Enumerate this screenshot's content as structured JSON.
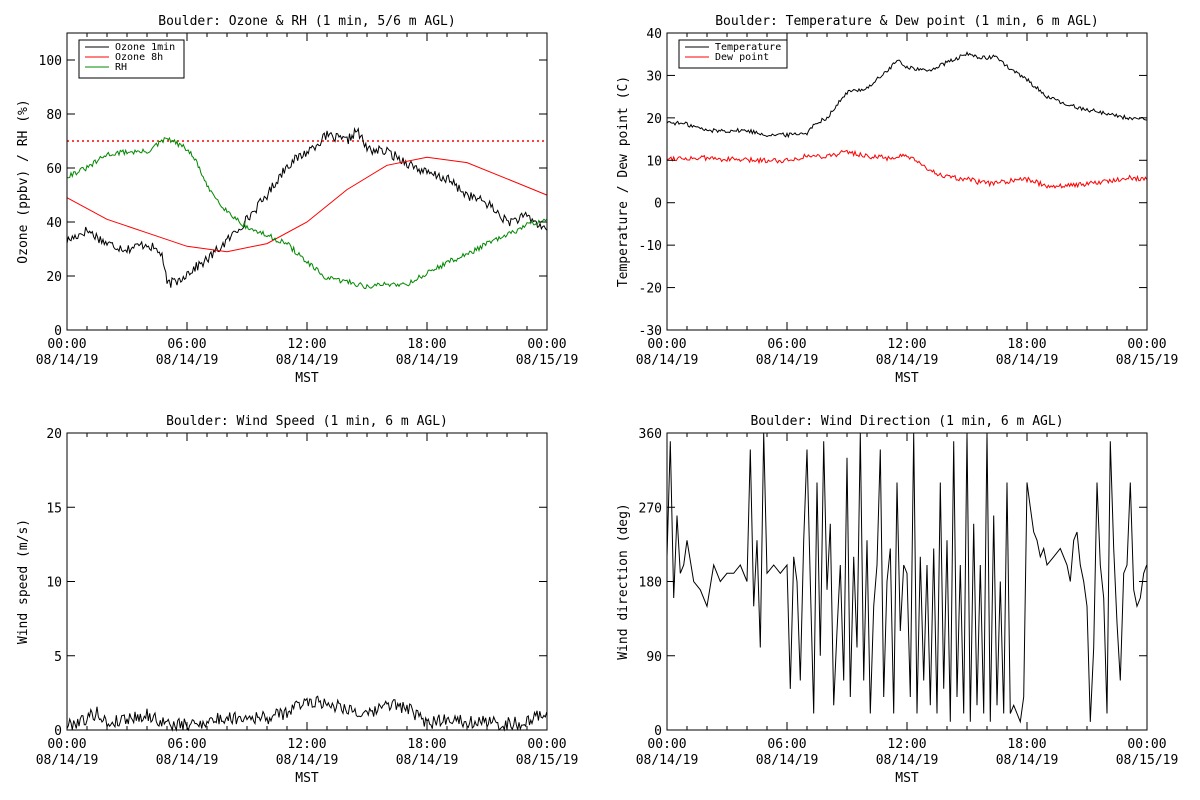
{
  "chart_data": [
    {
      "type": "line",
      "title": "Boulder: Ozone & RH (1 min, 5/6 m AGL)",
      "xlabel": "MST",
      "ylabel": "Ozone (ppbv) / RH (%)",
      "xlim": [
        "08/14/19 00:00",
        "08/15/19 00:00"
      ],
      "ylim": [
        0,
        110
      ],
      "x_ticks": [
        {
          "time": "00:00",
          "date": "08/14/19"
        },
        {
          "time": "06:00",
          "date": "08/14/19"
        },
        {
          "time": "12:00",
          "date": "08/14/19"
        },
        {
          "time": "18:00",
          "date": "08/14/19"
        },
        {
          "time": "00:00",
          "date": "08/15/19"
        }
      ],
      "y_ticks": [
        0,
        20,
        40,
        60,
        80,
        100
      ],
      "legend_position": "top-left",
      "reference_line": {
        "y": 70,
        "color": "#ff0000",
        "style": "dotted"
      },
      "series": [
        {
          "name": "Ozone 1min",
          "color": "#000000",
          "noise": 1.8,
          "x": [
            "00:00",
            "01:00",
            "02:00",
            "03:00",
            "04:00",
            "04:45",
            "05:00",
            "05:30",
            "06:00",
            "07:00",
            "08:00",
            "09:00",
            "10:00",
            "11:00",
            "12:00",
            "13:00",
            "14:00",
            "14:30",
            "15:00",
            "16:00",
            "17:00",
            "18:00",
            "19:00",
            "20:00",
            "21:00",
            "22:00",
            "23:00",
            "23:59"
          ],
          "y": [
            33,
            37,
            32,
            30,
            32,
            28,
            17,
            18,
            21,
            26,
            33,
            41,
            50,
            61,
            66,
            72,
            70,
            74,
            67,
            66,
            62,
            58,
            56,
            50,
            47,
            40,
            42,
            37
          ]
        },
        {
          "name": "Ozone 8h",
          "color": "#ff0000",
          "noise": 0,
          "x": [
            "00:00",
            "02:00",
            "04:00",
            "06:00",
            "08:00",
            "10:00",
            "12:00",
            "14:00",
            "16:00",
            "18:00",
            "20:00",
            "22:00",
            "23:59"
          ],
          "y": [
            49,
            41,
            36,
            31,
            29,
            32,
            40,
            52,
            61,
            64,
            62,
            56,
            50
          ]
        },
        {
          "name": "RH",
          "color": "#008800",
          "noise": 1,
          "x": [
            "00:00",
            "01:00",
            "02:00",
            "03:00",
            "04:00",
            "05:00",
            "05:30",
            "06:00",
            "06:30",
            "07:00",
            "08:00",
            "09:00",
            "10:00",
            "11:00",
            "12:00",
            "13:00",
            "14:00",
            "15:00",
            "16:00",
            "17:00",
            "18:00",
            "19:00",
            "20:00",
            "21:00",
            "22:00",
            "23:00",
            "23:59"
          ],
          "y": [
            57,
            60,
            65,
            66,
            66,
            71,
            69,
            67,
            62,
            53,
            44,
            38,
            35,
            32,
            25,
            19,
            18,
            16,
            17,
            17,
            21,
            25,
            28,
            32,
            35,
            39,
            41
          ]
        }
      ]
    },
    {
      "type": "line",
      "title": "Boulder: Temperature & Dew point (1 min, 6 m AGL)",
      "xlabel": "MST",
      "ylabel": "Temperature / Dew point (C)",
      "xlim": [
        "08/14/19 00:00",
        "08/15/19 00:00"
      ],
      "ylim": [
        -30,
        40
      ],
      "x_ticks": [
        {
          "time": "00:00",
          "date": "08/14/19"
        },
        {
          "time": "06:00",
          "date": "08/14/19"
        },
        {
          "time": "12:00",
          "date": "08/14/19"
        },
        {
          "time": "18:00",
          "date": "08/14/19"
        },
        {
          "time": "00:00",
          "date": "08/15/19"
        }
      ],
      "y_ticks": [
        -30,
        -20,
        -10,
        0,
        10,
        20,
        30,
        40
      ],
      "legend_position": "top-left",
      "series": [
        {
          "name": "Temperature",
          "color": "#000000",
          "noise": 0.5,
          "x": [
            "00:00",
            "01:00",
            "02:00",
            "03:00",
            "04:00",
            "05:00",
            "06:00",
            "07:00",
            "07:30",
            "08:00",
            "09:00",
            "10:00",
            "11:00",
            "11:30",
            "12:00",
            "13:00",
            "14:00",
            "15:00",
            "16:00",
            "16:30",
            "17:00",
            "18:00",
            "19:00",
            "20:00",
            "21:00",
            "22:00",
            "23:00",
            "23:59"
          ],
          "y": [
            19,
            18.5,
            17,
            17,
            17,
            16,
            16,
            16.5,
            19,
            20,
            26,
            27,
            31,
            33.5,
            32,
            31,
            33,
            35,
            34,
            34.5,
            32,
            29,
            25,
            23,
            22,
            21,
            20,
            19.5
          ]
        },
        {
          "name": "Dew point",
          "color": "#ff0000",
          "noise": 0.6,
          "x": [
            "00:00",
            "02:00",
            "04:00",
            "06:00",
            "07:00",
            "08:00",
            "09:00",
            "10:00",
            "11:00",
            "12:00",
            "13:00",
            "14:00",
            "15:00",
            "16:00",
            "17:00",
            "18:00",
            "19:00",
            "20:00",
            "21:00",
            "22:00",
            "23:00",
            "23:59"
          ],
          "y": [
            10.5,
            10.5,
            10,
            10,
            11,
            11,
            12,
            11,
            10.5,
            11,
            8,
            6,
            5.5,
            4.5,
            5,
            5.5,
            4,
            4,
            4.5,
            5,
            6,
            5.5
          ]
        }
      ]
    },
    {
      "type": "line",
      "title": "Boulder: Wind Speed (1 min, 6 m AGL)",
      "xlabel": "MST",
      "ylabel": "Wind speed (m/s)",
      "xlim": [
        "08/14/19 00:00",
        "08/15/19 00:00"
      ],
      "ylim": [
        0,
        20
      ],
      "x_ticks": [
        {
          "time": "00:00",
          "date": "08/14/19"
        },
        {
          "time": "06:00",
          "date": "08/14/19"
        },
        {
          "time": "12:00",
          "date": "08/14/19"
        },
        {
          "time": "18:00",
          "date": "08/14/19"
        },
        {
          "time": "00:00",
          "date": "08/15/19"
        }
      ],
      "y_ticks": [
        0,
        5,
        10,
        15,
        20
      ],
      "series": [
        {
          "name": "",
          "color": "#000000",
          "noise": 0.45,
          "x": [
            "00:00",
            "01:00",
            "01:30",
            "02:00",
            "03:00",
            "04:00",
            "05:00",
            "06:00",
            "07:00",
            "08:00",
            "09:00",
            "10:00",
            "11:00",
            "12:00",
            "13:00",
            "14:00",
            "15:00",
            "16:00",
            "17:00",
            "18:00",
            "19:00",
            "20:00",
            "21:00",
            "22:00",
            "23:00",
            "23:30",
            "23:59"
          ],
          "y": [
            0.3,
            0.8,
            1.2,
            0.4,
            0.8,
            1.0,
            0.4,
            0.3,
            0.6,
            0.8,
            0.9,
            0.8,
            1.2,
            2.0,
            1.8,
            1.5,
            0.9,
            1.8,
            1.5,
            0.4,
            0.8,
            0.6,
            0.5,
            0.4,
            0.5,
            0.9,
            1.2
          ]
        }
      ]
    },
    {
      "type": "line",
      "title": "Boulder: Wind Direction (1 min, 6 m AGL)",
      "xlabel": "MST",
      "ylabel": "Wind direction (deg)",
      "xlim": [
        "08/14/19 00:00",
        "08/15/19 00:00"
      ],
      "ylim": [
        0,
        360
      ],
      "x_ticks": [
        {
          "time": "00:00",
          "date": "08/14/19"
        },
        {
          "time": "06:00",
          "date": "08/14/19"
        },
        {
          "time": "12:00",
          "date": "08/14/19"
        },
        {
          "time": "18:00",
          "date": "08/14/19"
        },
        {
          "time": "00:00",
          "date": "08/15/19"
        }
      ],
      "y_ticks": [
        0,
        90,
        180,
        270,
        360
      ],
      "series": [
        {
          "name": "",
          "color": "#000000",
          "noise": 0,
          "x": [
            "00:00",
            "00:10",
            "00:20",
            "00:30",
            "00:40",
            "00:50",
            "01:00",
            "01:20",
            "01:40",
            "02:00",
            "02:20",
            "02:40",
            "03:00",
            "03:20",
            "03:40",
            "04:00",
            "04:10",
            "04:20",
            "04:30",
            "04:40",
            "04:50",
            "05:00",
            "05:20",
            "05:40",
            "06:00",
            "06:10",
            "06:20",
            "06:30",
            "06:40",
            "06:50",
            "07:00",
            "07:10",
            "07:20",
            "07:30",
            "07:40",
            "07:50",
            "08:00",
            "08:10",
            "08:20",
            "08:30",
            "08:40",
            "08:50",
            "09:00",
            "09:10",
            "09:20",
            "09:30",
            "09:40",
            "09:50",
            "10:00",
            "10:10",
            "10:20",
            "10:30",
            "10:40",
            "10:50",
            "11:00",
            "11:10",
            "11:20",
            "11:30",
            "11:40",
            "11:50",
            "12:00",
            "12:10",
            "12:20",
            "12:30",
            "12:40",
            "12:50",
            "13:00",
            "13:10",
            "13:20",
            "13:30",
            "13:40",
            "13:50",
            "14:00",
            "14:10",
            "14:20",
            "14:30",
            "14:40",
            "14:50",
            "15:00",
            "15:10",
            "15:20",
            "15:30",
            "15:40",
            "15:50",
            "16:00",
            "16:10",
            "16:20",
            "16:30",
            "16:40",
            "16:50",
            "17:00",
            "17:10",
            "17:20",
            "17:30",
            "17:40",
            "17:50",
            "18:00",
            "18:10",
            "18:20",
            "18:30",
            "18:40",
            "18:50",
            "19:00",
            "19:20",
            "19:40",
            "20:00",
            "20:10",
            "20:20",
            "20:30",
            "20:40",
            "20:50",
            "21:00",
            "21:10",
            "21:20",
            "21:30",
            "21:40",
            "21:50",
            "22:00",
            "22:10",
            "22:20",
            "22:30",
            "22:40",
            "22:50",
            "23:00",
            "23:10",
            "23:20",
            "23:30",
            "23:40",
            "23:50",
            "23:59"
          ],
          "y": [
            210,
            350,
            160,
            260,
            190,
            200,
            230,
            180,
            170,
            150,
            200,
            180,
            190,
            190,
            200,
            180,
            340,
            150,
            230,
            100,
            360,
            190,
            200,
            190,
            200,
            50,
            210,
            180,
            60,
            230,
            340,
            180,
            20,
            300,
            90,
            350,
            170,
            250,
            30,
            120,
            200,
            60,
            330,
            40,
            210,
            100,
            360,
            60,
            230,
            20,
            150,
            200,
            340,
            40,
            180,
            220,
            20,
            300,
            120,
            200,
            190,
            40,
            360,
            20,
            210,
            60,
            200,
            30,
            220,
            20,
            300,
            50,
            230,
            10,
            350,
            40,
            200,
            20,
            360,
            10,
            250,
            30,
            200,
            20,
            360,
            10,
            260,
            30,
            180,
            20,
            300,
            20,
            30,
            20,
            10,
            40,
            300,
            270,
            240,
            230,
            210,
            220,
            200,
            210,
            220,
            200,
            180,
            230,
            240,
            200,
            180,
            150,
            10,
            100,
            300,
            200,
            160,
            20,
            350,
            220,
            130,
            60,
            190,
            200,
            300,
            170,
            150,
            160,
            190,
            200
          ]
        }
      ]
    }
  ]
}
